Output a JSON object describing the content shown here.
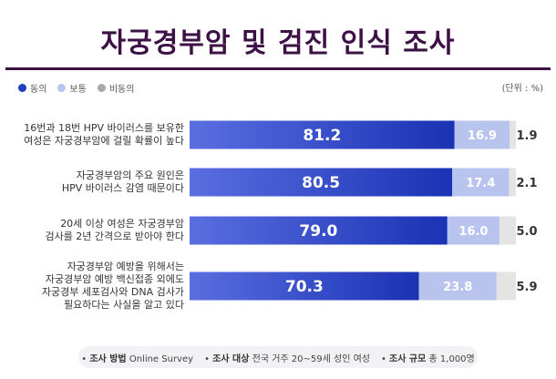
{
  "title": "자궁경부암 및 검진 인식 조사",
  "unit": "(단위 : %)",
  "legend": [
    {
      "label": "동의",
      "color": "#1f3fbf"
    },
    {
      "label": "보통",
      "color": "#b9c4ee"
    },
    {
      "label": "비동의",
      "color": "#a8a8a8"
    }
  ],
  "chart_data": {
    "type": "bar",
    "orientation": "horizontal",
    "stacked": true,
    "categories": [
      [
        "16번과 18번 HPV 바이러스를 보유한",
        "여성은 자궁경부암에 걸릴 확률이 높다"
      ],
      [
        "자궁경부암의 주요 원인은",
        "HPV 바이러스 감염 때문이다"
      ],
      [
        "20세 이상 여성은 자궁경부암",
        "검사를 2년 간격으로 받아야 한다"
      ],
      [
        "자궁경부암 예방을 위해서는",
        "자궁경부암 예방 백신접종 외에도",
        "자궁경부 세포검사와 DNA 검사가",
        "필요하다는 사실을 알고 있다"
      ]
    ],
    "series": [
      {
        "name": "동의",
        "values": [
          81.2,
          80.5,
          79.0,
          70.3
        ]
      },
      {
        "name": "보통",
        "values": [
          16.9,
          17.4,
          16.0,
          23.8
        ]
      },
      {
        "name": "비동의",
        "values": [
          1.9,
          2.1,
          5.0,
          5.9
        ]
      }
    ],
    "value_labels": [
      [
        "81.2",
        "16.9",
        "1.9"
      ],
      [
        "80.5",
        "17.4",
        "2.1"
      ],
      [
        "79.0",
        "16.0",
        "5.0"
      ],
      [
        "70.3",
        "23.8",
        "5.9"
      ]
    ],
    "xlim": [
      0,
      100
    ],
    "grid": false,
    "legend_position": "top-left"
  },
  "footer": [
    {
      "key": "조사 방법",
      "value": "Online Survey"
    },
    {
      "key": "조사 대상",
      "value": "전국 거주 20~59세 성인 여성"
    },
    {
      "key": "조사 규모",
      "value": "총 1,000명"
    }
  ]
}
